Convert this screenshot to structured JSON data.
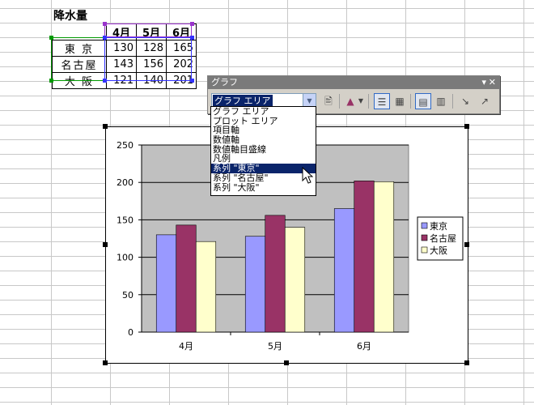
{
  "sheet": {
    "title": "降水量",
    "months": [
      "4月",
      "5月",
      "6月"
    ],
    "rows": [
      {
        "city": "東 京",
        "values": [
          "130",
          "128",
          "165"
        ]
      },
      {
        "city": "名古屋",
        "values": [
          "143",
          "156",
          "202"
        ]
      },
      {
        "city": "大 阪",
        "values": [
          "121",
          "140",
          "201"
        ]
      }
    ]
  },
  "toolbar": {
    "title": "グラフ",
    "selected_object": "グラフ エリア",
    "icons": [
      "format-object-icon",
      "chart-type-icon",
      "legend-icon",
      "data-table-icon",
      "by-row-icon",
      "by-column-icon",
      "angle-down-icon",
      "angle-up-icon"
    ]
  },
  "dropdown": {
    "items": [
      "グラフ エリア",
      "プロット エリア",
      "項目軸",
      "数値軸",
      "数値軸目盛線",
      "凡例",
      "系列 \"東京\"",
      "系列 \"名古屋\"",
      "系列 \"大阪\""
    ],
    "highlighted_index": 6
  },
  "chart_data": {
    "type": "bar",
    "categories": [
      "4月",
      "5月",
      "6月"
    ],
    "series": [
      {
        "name": "東京",
        "values": [
          130,
          128,
          165
        ],
        "color": "#9999ff"
      },
      {
        "name": "名古屋",
        "values": [
          143,
          156,
          202
        ],
        "color": "#993366"
      },
      {
        "name": "大阪",
        "values": [
          121,
          140,
          201
        ],
        "color": "#ffffcc"
      }
    ],
    "ylim": [
      0,
      250
    ],
    "yticks": [
      "0",
      "50",
      "100",
      "150",
      "200",
      "250"
    ],
    "plot_bg": "#c0c0c0",
    "grid": true,
    "legend": "right"
  }
}
